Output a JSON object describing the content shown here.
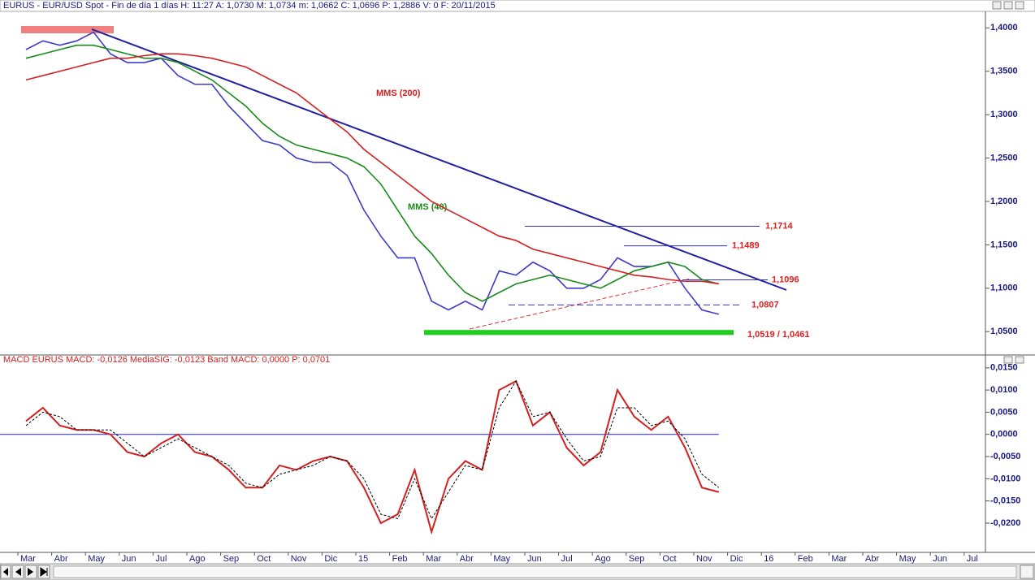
{
  "chart_data": [
    {
      "type": "line",
      "title": "EURUS - EUR/USD Spot - Fin de día 1 días H: 11:27 A: 1,0730 M: 1,0734 m: 1,0662 C: 1,0696 P: 1,2886 V: 0 F: 20/11/2015",
      "categories": [
        "Mar",
        null,
        "Abr",
        null,
        "May",
        null,
        "Jun",
        null,
        "Jul",
        null,
        "Ago",
        null,
        "Sep",
        null,
        "Oct",
        null,
        "Nov",
        null,
        "Dic",
        null,
        "15",
        null,
        "Feb",
        null,
        "Mar",
        null,
        "Abr",
        null,
        "May",
        null,
        "Jun",
        null,
        "Jul",
        null,
        "Ago",
        null,
        "Sep",
        null,
        "Oct",
        null,
        "Nov",
        null,
        "Dic",
        null,
        "16",
        null,
        "Feb",
        null,
        "Mar",
        null,
        "Abr",
        null,
        "May",
        null,
        "Jun",
        null,
        "Jul",
        null
      ],
      "series": [
        {
          "color": "#3c3cc8",
          "values": [
            1.375,
            1.385,
            1.38,
            1.385,
            1.395,
            1.37,
            1.36,
            1.36,
            1.365,
            1.345,
            1.335,
            1.335,
            1.31,
            1.29,
            1.27,
            1.265,
            1.25,
            1.245,
            1.245,
            1.23,
            1.19,
            1.16,
            1.135,
            1.135,
            1.085,
            1.075,
            1.085,
            1.075,
            1.12,
            1.115,
            1.13,
            1.12,
            1.1,
            1.1,
            1.11,
            1.135,
            1.125,
            1.125,
            1.13,
            1.1,
            1.075,
            1.07,
            null,
            null,
            null,
            null,
            null,
            null,
            null,
            null,
            null,
            null,
            null,
            null,
            null,
            null,
            null,
            null
          ]
        },
        {
          "name": "MMS (40)",
          "color": "#1a8a1a",
          "values": [
            1.365,
            1.37,
            1.375,
            1.38,
            1.38,
            1.375,
            1.37,
            1.365,
            1.365,
            1.36,
            1.35,
            1.34,
            1.325,
            1.31,
            1.29,
            1.275,
            1.265,
            1.26,
            1.255,
            1.25,
            1.24,
            1.22,
            1.19,
            1.16,
            1.14,
            1.115,
            1.095,
            1.085,
            1.095,
            1.105,
            1.11,
            1.115,
            1.11,
            1.105,
            1.1,
            1.11,
            1.12,
            1.125,
            1.13,
            1.125,
            1.11,
            1.105,
            null,
            null,
            null,
            null,
            null,
            null,
            null,
            null,
            null,
            null,
            null,
            null,
            null,
            null,
            null,
            null
          ]
        },
        {
          "name": "MMS (200)",
          "color": "#d42020",
          "values": [
            1.34,
            1.345,
            1.35,
            1.355,
            1.36,
            1.365,
            1.365,
            1.368,
            1.37,
            1.37,
            1.368,
            1.365,
            1.36,
            1.355,
            1.345,
            1.335,
            1.325,
            1.31,
            1.295,
            1.28,
            1.26,
            1.245,
            1.23,
            1.215,
            1.2,
            1.19,
            1.18,
            1.17,
            1.16,
            1.155,
            1.145,
            1.14,
            1.135,
            1.13,
            1.125,
            1.12,
            1.115,
            1.113,
            1.11,
            1.108,
            1.108,
            1.105,
            null,
            null,
            null,
            null,
            null,
            null,
            null,
            null,
            null,
            null,
            null,
            null,
            null,
            null,
            null,
            null
          ]
        }
      ],
      "levels": [
        {
          "label": "1,1714",
          "value": 1.1714
        },
        {
          "label": "1,1489",
          "value": 1.1489
        },
        {
          "label": "1,1096",
          "value": 1.1096
        },
        {
          "label": "1,0807",
          "value": 1.0807
        }
      ],
      "band": {
        "label": "1,0519 / 1,0461",
        "values": [
          1.0519,
          1.0461
        ],
        "color": "#22cc22"
      },
      "ylim": [
        1.024,
        1.419
      ],
      "yticks": [
        {
          "value": 1.05,
          "label": "1,0500"
        },
        {
          "value": 1.1,
          "label": "1,1000"
        },
        {
          "value": 1.15,
          "label": "1,1500"
        },
        {
          "value": 1.2,
          "label": "1,2000"
        },
        {
          "value": 1.25,
          "label": "1,2500"
        },
        {
          "value": 1.3,
          "label": "1,3000"
        },
        {
          "value": 1.35,
          "label": "1,3500"
        },
        {
          "value": 1.4,
          "label": "1,4000"
        }
      ]
    },
    {
      "type": "line",
      "title": "MACD EURUS MACD: -0,0126 MediaSIG: -0,0123 Band MACD: 0,0000 P: 0,0701",
      "series": [
        {
          "color": "#d42020",
          "values": [
            0.003,
            0.006,
            0.002,
            0.001,
            0.001,
            0.0,
            -0.004,
            -0.005,
            -0.002,
            0.0,
            -0.004,
            -0.005,
            -0.008,
            -0.012,
            -0.012,
            -0.007,
            -0.008,
            -0.006,
            -0.005,
            -0.006,
            -0.012,
            -0.02,
            -0.018,
            -0.008,
            -0.022,
            -0.01,
            -0.006,
            -0.008,
            0.01,
            0.012,
            0.002,
            0.005,
            -0.003,
            -0.007,
            -0.004,
            0.01,
            0.004,
            0.001,
            0.004,
            -0.003,
            -0.012,
            -0.013,
            null,
            null,
            null,
            null,
            null,
            null,
            null,
            null,
            null,
            null,
            null,
            null,
            null,
            null,
            null,
            null
          ]
        },
        {
          "color": "#000000",
          "dashed": true,
          "values": [
            0.002,
            0.005,
            0.004,
            0.001,
            0.001,
            0.001,
            -0.002,
            -0.005,
            -0.003,
            -0.001,
            -0.003,
            -0.005,
            -0.007,
            -0.011,
            -0.012,
            -0.009,
            -0.008,
            -0.007,
            -0.005,
            -0.006,
            -0.01,
            -0.018,
            -0.019,
            -0.01,
            -0.019,
            -0.013,
            -0.007,
            -0.008,
            0.006,
            0.012,
            0.004,
            0.005,
            -0.001,
            -0.006,
            -0.005,
            0.006,
            0.006,
            0.002,
            0.003,
            -0.001,
            -0.009,
            -0.012,
            null,
            null,
            null,
            null,
            null,
            null,
            null,
            null,
            null,
            null,
            null,
            null,
            null,
            null,
            null,
            null
          ]
        }
      ],
      "band_line": 0,
      "ylim": [
        -0.0266,
        0.0157
      ],
      "yticks": [
        {
          "value": -0.02,
          "label": "-0,0200"
        },
        {
          "value": -0.015,
          "label": "-0,0150"
        },
        {
          "value": -0.01,
          "label": "-0,0100"
        },
        {
          "value": -0.005,
          "label": "-0,0050"
        },
        {
          "value": 0,
          "label": "0,0000"
        },
        {
          "value": 0.005,
          "label": "0,0050"
        },
        {
          "value": 0.01,
          "label": "0,0100"
        },
        {
          "value": 0.015,
          "label": "0,0150"
        }
      ]
    }
  ]
}
